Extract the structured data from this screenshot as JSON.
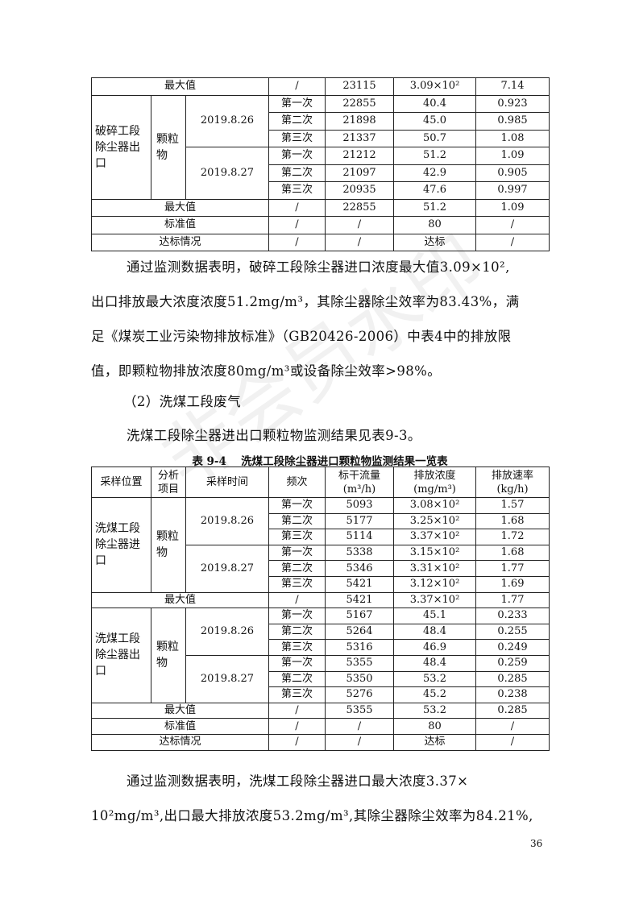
{
  "table1": {
    "top_summary": {
      "label": "最大值",
      "values": [
        "/",
        "23115",
        "3.09×10²",
        "7.14"
      ]
    },
    "group": {
      "location": "破碎工段除尘器出口",
      "item": "颗粒物",
      "dates": [
        {
          "date": "2019.8.26",
          "samples": [
            [
              "第一次",
              "22855",
              "40.4",
              "0.923"
            ],
            [
              "第二次",
              "21898",
              "45.0",
              "0.985"
            ],
            [
              "第三次",
              "21337",
              "50.7",
              "1.08"
            ]
          ]
        },
        {
          "date": "2019.8.27",
          "samples": [
            [
              "第一次",
              "21212",
              "51.2",
              "1.09"
            ],
            [
              "第二次",
              "21097",
              "42.9",
              "0.905"
            ],
            [
              "第三次",
              "20935",
              "47.6",
              "0.997"
            ]
          ]
        }
      ]
    },
    "summary": [
      {
        "label": "最大值",
        "values": [
          "/",
          "22855",
          "51.2",
          "1.09"
        ]
      },
      {
        "label": "标准值",
        "values": [
          "/",
          "/",
          "80",
          "/"
        ]
      },
      {
        "label": "达标情况",
        "values": [
          "/",
          "/",
          "达标",
          "/"
        ]
      }
    ]
  },
  "paragraph1": {
    "lines": [
      "通过监测数据表明，破碎工段除尘器进口浓度最大值3.09×10²,",
      "出口排放最大浓度浓度51.2mg/m³，其除尘器除尘效率为83.43%，满",
      "足《煤炭工业污染物排放标准》（GB20426-2006）中表4中的排放限",
      "值，即颗粒物排放浓度80mg/m³或设备除尘效率>98%。"
    ]
  },
  "subheading": "（2）洗煤工段废气",
  "paragraph2": "洗煤工段除尘器进出口颗粒物监测结果见表9-3。",
  "table2": {
    "caption": "表 9-4　 洗煤工段除尘器进口颗粒物监测结果一览表",
    "headers": [
      "采样位置",
      "分析项目",
      "采样时间",
      "频次",
      "标干流量(m³/h)",
      "排放浓度(mg/m³)",
      "排放速率(kg/h)"
    ],
    "groups": [
      {
        "location": "洗煤工段除尘器进口",
        "item": "颗粒物",
        "dates": [
          {
            "date": "2019.8.26",
            "samples": [
              [
                "第一次",
                "5093",
                "3.08×10²",
                "1.57"
              ],
              [
                "第二次",
                "5177",
                "3.25×10²",
                "1.68"
              ],
              [
                "第三次",
                "5114",
                "3.37×10²",
                "1.72"
              ]
            ]
          },
          {
            "date": "2019.8.27",
            "samples": [
              [
                "第一次",
                "5338",
                "3.15×10²",
                "1.68"
              ],
              [
                "第二次",
                "5346",
                "3.31×10²",
                "1.77"
              ],
              [
                "第三次",
                "5421",
                "3.12×10²",
                "1.69"
              ]
            ]
          }
        ],
        "summary": [
          {
            "label": "最大值",
            "values": [
              "/",
              "5421",
              "3.37×10²",
              "1.77"
            ]
          }
        ]
      },
      {
        "location": "洗煤工段除尘器出口",
        "item": "颗粒物",
        "dates": [
          {
            "date": "2019.8.26",
            "samples": [
              [
                "第一次",
                "5167",
                "45.1",
                "0.233"
              ],
              [
                "第二次",
                "5264",
                "48.4",
                "0.255"
              ],
              [
                "第三次",
                "5316",
                "46.9",
                "0.249"
              ]
            ]
          },
          {
            "date": "2019.8.27",
            "samples": [
              [
                "第一次",
                "5355",
                "48.4",
                "0.259"
              ],
              [
                "第二次",
                "5350",
                "53.2",
                "0.285"
              ],
              [
                "第三次",
                "5276",
                "45.2",
                "0.238"
              ]
            ]
          }
        ],
        "summary": [
          {
            "label": "最大值",
            "values": [
              "/",
              "5355",
              "53.2",
              "0.285"
            ]
          },
          {
            "label": "标准值",
            "values": [
              "/",
              "/",
              "80",
              "/"
            ]
          },
          {
            "label": "达标情况",
            "values": [
              "/",
              "/",
              "达标",
              "/"
            ]
          }
        ]
      }
    ]
  },
  "paragraph3": {
    "lines": [
      "通过监测数据表明，洗煤工段除尘器进口最大浓度3.37×",
      "10²mg/m³,出口最大排放浓度53.2mg/m³,其除尘器除尘效率为84.21%,"
    ]
  },
  "page_number": "36",
  "watermark": "非会员水印"
}
